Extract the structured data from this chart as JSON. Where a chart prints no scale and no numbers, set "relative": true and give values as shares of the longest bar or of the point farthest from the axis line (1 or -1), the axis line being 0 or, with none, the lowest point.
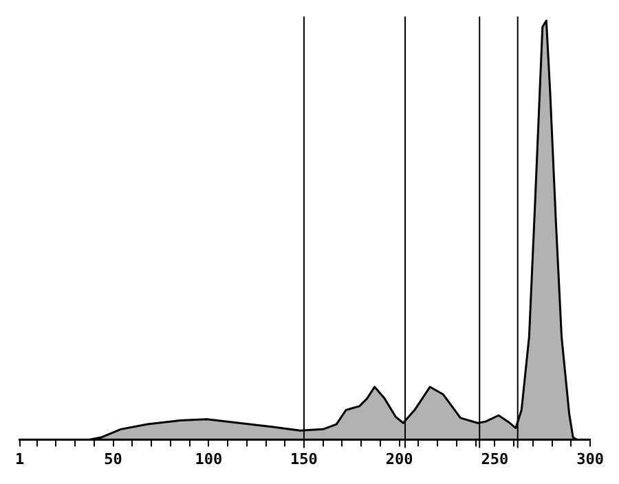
{
  "chart_data": {
    "type": "area",
    "relative": true,
    "series": [
      {
        "color": "#000000",
        "x": [
          37,
          44,
          54,
          68,
          85,
          99,
          116,
          133,
          148,
          160,
          167,
          172,
          179,
          183,
          187,
          192,
          198,
          202,
          208,
          216,
          223,
          232,
          241,
          245,
          252,
          257,
          261,
          264,
          268,
          271,
          273,
          275,
          277,
          279,
          282,
          285,
          289,
          291,
          293
        ],
        "values": [
          0,
          0.006,
          0.025,
          0.037,
          0.046,
          0.049,
          0.04,
          0.031,
          0.022,
          0.025,
          0.037,
          0.071,
          0.08,
          0.098,
          0.126,
          0.1,
          0.055,
          0.04,
          0.071,
          0.126,
          0.108,
          0.052,
          0.04,
          0.043,
          0.058,
          0.043,
          0.028,
          0.071,
          0.246,
          0.554,
          0.77,
          0.985,
          1,
          0.83,
          0.523,
          0.246,
          0.062,
          0.006,
          0
        ]
      }
    ],
    "xlim": [
      1,
      300
    ],
    "xticks": [
      1,
      {
        "value": 10,
        "label": null
      },
      {
        "value": 20,
        "label": null
      },
      {
        "value": 30,
        "label": null
      },
      {
        "value": 40,
        "label": null
      },
      50,
      {
        "value": 60,
        "label": null
      },
      {
        "value": 70,
        "label": null
      },
      {
        "value": 80,
        "label": null
      },
      {
        "value": 90,
        "label": null
      },
      100,
      {
        "value": 110,
        "label": null
      },
      {
        "value": 120,
        "label": null
      },
      {
        "value": 130,
        "label": null
      },
      {
        "value": 140,
        "label": null
      },
      150,
      {
        "value": 160,
        "label": null
      },
      {
        "value": 170,
        "label": null
      },
      {
        "value": 180,
        "label": null
      },
      {
        "value": 190,
        "label": null
      },
      200,
      {
        "value": 210,
        "label": null
      },
      {
        "value": 220,
        "label": null
      },
      {
        "value": 230,
        "label": null
      },
      {
        "value": 240,
        "label": null
      },
      250,
      {
        "value": 260,
        "label": null
      },
      {
        "value": 270,
        "label": null
      },
      {
        "value": 280,
        "label": null
      },
      {
        "value": 290,
        "label": null
      },
      300
    ],
    "ref_lines": [
      {
        "axis": "x",
        "value": 150
      },
      {
        "axis": "x",
        "value": 203
      },
      {
        "axis": "x",
        "value": 242
      },
      {
        "axis": "x",
        "value": 262
      }
    ],
    "grid": false,
    "legend": false
  }
}
